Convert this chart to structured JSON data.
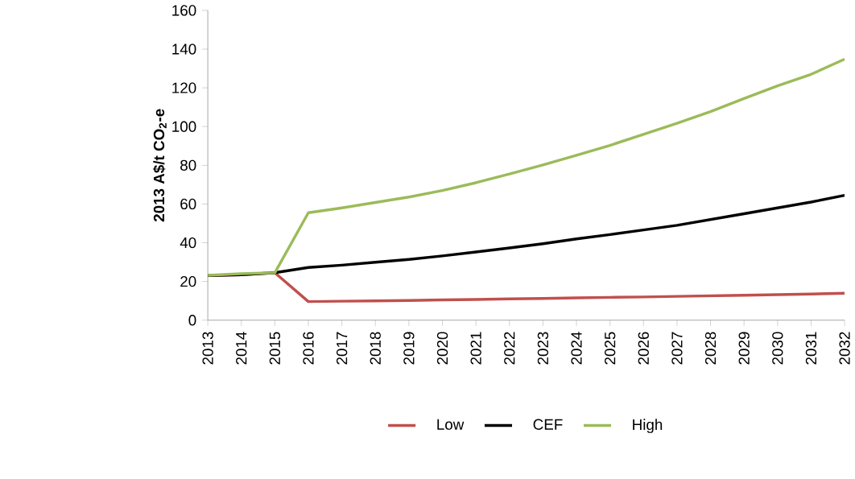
{
  "chart_data": {
    "type": "line",
    "ylabel": "2013 A$/t CO$_{2}$-e",
    "categories": [
      "2013",
      "2014",
      "2015",
      "2016",
      "2017",
      "2018",
      "2019",
      "2020",
      "2021",
      "2022",
      "2023",
      "2024",
      "2025",
      "2026",
      "2027",
      "2028",
      "2029",
      "2030",
      "2031",
      "2032"
    ],
    "series": [
      {
        "name": "Low",
        "color": "#c0504d",
        "values": [
          23,
          23.5,
          24.5,
          9.6,
          9.8,
          10.0,
          10.2,
          10.5,
          10.7,
          11.0,
          11.2,
          11.5,
          11.8,
          12.0,
          12.3,
          12.6,
          12.9,
          13.2,
          13.5,
          13.9
        ]
      },
      {
        "name": "CEF",
        "color": "#000000",
        "values": [
          23,
          23.5,
          24.5,
          27.2,
          28.4,
          29.9,
          31.4,
          33.2,
          35.2,
          37.3,
          39.5,
          42,
          44.2,
          46.6,
          49,
          52,
          55,
          58,
          61,
          64.5
        ]
      },
      {
        "name": "High",
        "color": "#9bbb59",
        "values": [
          23.2,
          24,
          24.5,
          55.5,
          58,
          60.8,
          63.6,
          67,
          71,
          75.5,
          80.2,
          85.2,
          90.3,
          96,
          101.7,
          107.7,
          114.5,
          121,
          127,
          134.8
        ]
      }
    ],
    "ylim": [
      0,
      160
    ],
    "yticks": [
      0,
      20,
      40,
      60,
      80,
      100,
      120,
      140,
      160
    ],
    "grid": false,
    "legend": "bottom",
    "marker": "none",
    "line_style": "solid"
  }
}
